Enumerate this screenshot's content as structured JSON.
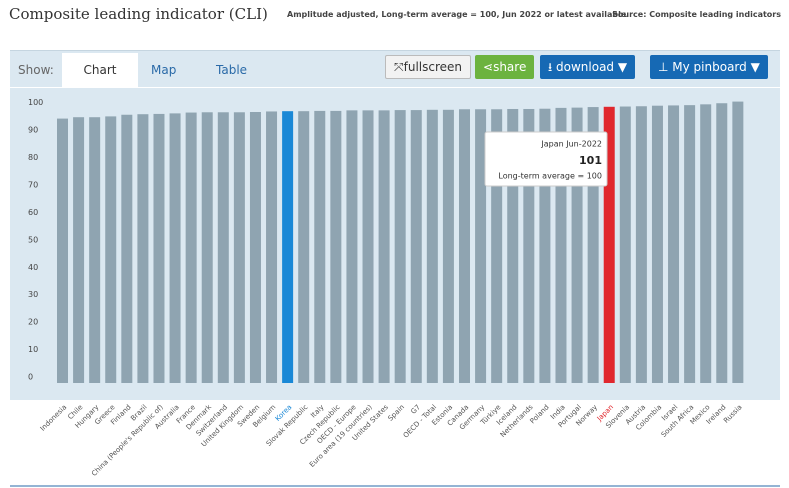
{
  "ui": {
    "show": "Show:",
    "tabs": [
      "Chart",
      "Map",
      "Table"
    ],
    "buttons": {
      "fullscreen": "fullscreen",
      "share": "share",
      "download": "download",
      "pinboard": "My pinboard"
    }
  },
  "chart_data": {
    "type": "bar",
    "title": "Composite leading indicator (CLI)",
    "subtitle": "Amplitude adjusted, Long-term average = 100, Jun 2022 or latest available",
    "source": "Source: Composite leading indicators",
    "categories": [
      "Indonesia",
      "Chile",
      "Hungary",
      "Greece",
      "Finland",
      "Brazil",
      "China (People's Republic of)",
      "Australia",
      "France",
      "Denmark",
      "Switzerland",
      "United Kingdom",
      "Sweden",
      "Belgium",
      "Korea",
      "Slovak Republic",
      "Italy",
      "Czech Republic",
      "OECD - Europe",
      "Euro area (19 countries)",
      "United States",
      "Spain",
      "G7",
      "OECD - Total",
      "Estonia",
      "Canada",
      "Germany",
      "Türkiye",
      "Iceland",
      "Netherlands",
      "Poland",
      "India",
      "Portugal",
      "Norway",
      "Japan",
      "Slovenia",
      "Austria",
      "Colombia",
      "Israel",
      "South Africa",
      "Mexico",
      "Ireland",
      "Russia"
    ],
    "values": [
      96.4,
      96.9,
      96.9,
      97.2,
      97.8,
      98,
      98.1,
      98.3,
      98.6,
      98.7,
      98.7,
      98.7,
      98.8,
      99,
      99.1,
      99.1,
      99.2,
      99.2,
      99.4,
      99.4,
      99.4,
      99.5,
      99.5,
      99.6,
      99.6,
      99.8,
      99.8,
      99.8,
      99.9,
      99.9,
      100,
      100.3,
      100.4,
      100.6,
      100.7,
      100.8,
      100.9,
      101.1,
      101.2,
      101.3,
      101.6,
      102,
      102.6
    ],
    "color": "#8fa4b1",
    "bar_colors": [
      "#8fa4b1",
      "#8fa4b1",
      "#8fa4b1",
      "#8fa4b1",
      "#8fa4b1",
      "#8fa4b1",
      "#8fa4b1",
      "#8fa4b1",
      "#8fa4b1",
      "#8fa4b1",
      "#8fa4b1",
      "#8fa4b1",
      "#8fa4b1",
      "#8fa4b1",
      "#1a88d6",
      "#8fa4b1",
      "#8fa4b1",
      "#8fa4b1",
      "#8fa4b1",
      "#8fa4b1",
      "#8fa4b1",
      "#8fa4b1",
      "#8fa4b1",
      "#8fa4b1",
      "#8fa4b1",
      "#8fa4b1",
      "#8fa4b1",
      "#8fa4b1",
      "#8fa4b1",
      "#8fa4b1",
      "#8fa4b1",
      "#8fa4b1",
      "#8fa4b1",
      "#8fa4b1",
      "#e0282e",
      "#8fa4b1",
      "#8fa4b1",
      "#8fa4b1",
      "#8fa4b1",
      "#8fa4b1",
      "#8fa4b1",
      "#8fa4b1",
      "#8fa4b1"
    ],
    "ylim": [
      0,
      105
    ],
    "yticks": [
      0,
      10,
      20,
      30,
      40,
      50,
      60,
      70,
      80,
      90,
      100
    ],
    "tooltip": {
      "title": "Japan Jun-2022",
      "value": 101,
      "note": "Long-term average = 100"
    }
  }
}
